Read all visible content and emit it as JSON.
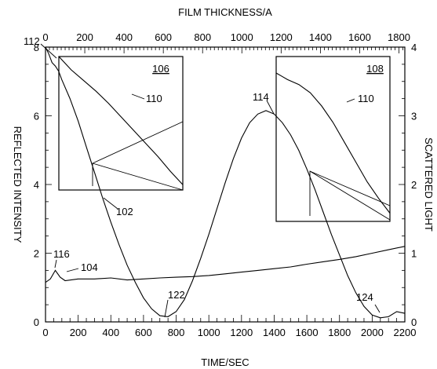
{
  "chart_data": {
    "type": "line",
    "x_axis": {
      "label": "TIME/SEC",
      "range": [
        0,
        2200
      ],
      "ticks": [
        0,
        200,
        400,
        600,
        800,
        1000,
        1200,
        1400,
        1600,
        1800,
        2000,
        2200
      ]
    },
    "x_top_axis": {
      "label": "FILM THICKNESS/A",
      "range": [
        0,
        1830
      ],
      "ticks": [
        0,
        200,
        400,
        600,
        800,
        1000,
        1200,
        1400,
        1600,
        1800
      ]
    },
    "y_axis": {
      "label": "REFLECTED INTENSITY",
      "range": [
        0,
        8
      ],
      "ticks": [
        0,
        2,
        4,
        6,
        8
      ]
    },
    "y_right_axis": {
      "label": "SCATTERED LIGHT",
      "range": [
        0,
        4
      ],
      "ticks": [
        0,
        1,
        2,
        3,
        4
      ]
    },
    "series": [
      {
        "id": "102",
        "axis": "left",
        "x": [
          0,
          20,
          40,
          60,
          80,
          100,
          150,
          200,
          250,
          300,
          350,
          400,
          450,
          500,
          550,
          600,
          650,
          700,
          750,
          800,
          850,
          900,
          950,
          1000,
          1050,
          1100,
          1150,
          1200,
          1250,
          1300,
          1350,
          1400,
          1450,
          1500,
          1550,
          1600,
          1650,
          1700,
          1750,
          1800,
          1850,
          1900,
          1950,
          2000,
          2050,
          2100,
          2150,
          2200
        ],
        "y": [
          8.0,
          7.8,
          7.55,
          7.45,
          7.3,
          7.05,
          6.5,
          5.85,
          5.1,
          4.35,
          3.6,
          2.9,
          2.25,
          1.65,
          1.15,
          0.7,
          0.38,
          0.18,
          0.15,
          0.3,
          0.65,
          1.2,
          1.85,
          2.55,
          3.3,
          4.05,
          4.75,
          5.35,
          5.8,
          6.05,
          6.15,
          6.05,
          5.8,
          5.45,
          5.0,
          4.45,
          3.85,
          3.2,
          2.55,
          1.95,
          1.35,
          0.85,
          0.45,
          0.2,
          0.12,
          0.15,
          0.3,
          0.25
        ]
      },
      {
        "id": "104",
        "axis": "left",
        "x": [
          0,
          30,
          60,
          90,
          120,
          200,
          300,
          400,
          500,
          600,
          700,
          800,
          900,
          1000,
          1100,
          1200,
          1300,
          1400,
          1500,
          1600,
          1700,
          1800,
          1900,
          2000,
          2100,
          2200
        ],
        "y": [
          1.15,
          1.25,
          1.5,
          1.3,
          1.2,
          1.25,
          1.25,
          1.28,
          1.22,
          1.25,
          1.28,
          1.3,
          1.32,
          1.35,
          1.4,
          1.45,
          1.5,
          1.55,
          1.6,
          1.68,
          1.75,
          1.82,
          1.9,
          2.0,
          2.1,
          2.2
        ]
      },
      {
        "id": "110-106",
        "inset": "106",
        "x": [
          0,
          0.05,
          0.1,
          0.2,
          0.3,
          0.4,
          0.5,
          0.6,
          0.7,
          0.8,
          0.9,
          1.0
        ],
        "y": [
          1.0,
          0.95,
          0.9,
          0.82,
          0.74,
          0.65,
          0.55,
          0.45,
          0.35,
          0.25,
          0.14,
          0.04
        ]
      },
      {
        "id": "110-108",
        "inset": "108",
        "x": [
          0,
          0.05,
          0.1,
          0.2,
          0.3,
          0.4,
          0.5,
          0.6,
          0.7,
          0.8,
          0.9,
          1.0
        ],
        "y": [
          0.9,
          0.88,
          0.86,
          0.83,
          0.78,
          0.7,
          0.6,
          0.48,
          0.36,
          0.24,
          0.14,
          0.05
        ]
      }
    ],
    "insets": [
      {
        "id": "106",
        "label": "106"
      },
      {
        "id": "108",
        "label": "108"
      }
    ],
    "annotations": [
      {
        "id": "112",
        "text": "112"
      },
      {
        "id": "114",
        "text": "114"
      },
      {
        "id": "110a",
        "text": "110"
      },
      {
        "id": "110b",
        "text": "110"
      },
      {
        "id": "102",
        "text": "102"
      },
      {
        "id": "104",
        "text": "104"
      },
      {
        "id": "116",
        "text": "116"
      },
      {
        "id": "122",
        "text": "122"
      },
      {
        "id": "124",
        "text": "124"
      }
    ],
    "grid": false,
    "legend": "none"
  }
}
